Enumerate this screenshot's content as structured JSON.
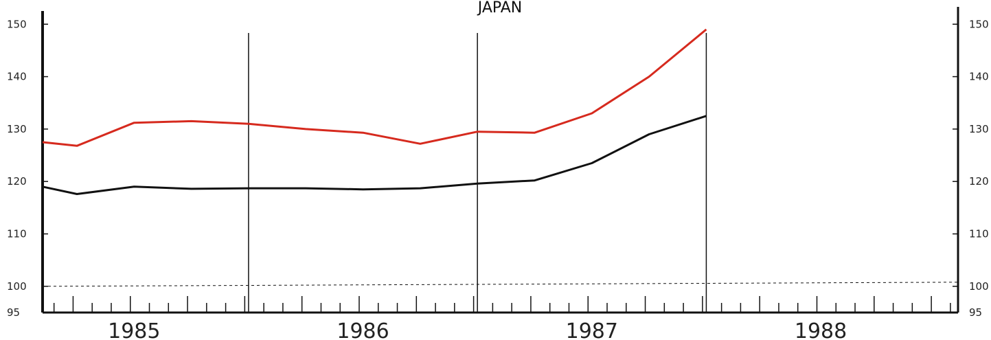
{
  "chart_data": {
    "type": "line",
    "title": "JAPAN",
    "xlabel": "",
    "ylabel": "",
    "x_tick_labels": [
      "1985",
      "1986",
      "1987",
      "1988"
    ],
    "y_ticks": [
      95,
      100,
      110,
      120,
      130,
      140,
      150
    ],
    "ylim": [
      95,
      152
    ],
    "xlim": [
      1984.6,
      1988.6
    ],
    "reference_line": {
      "y": 100,
      "style": "dashed"
    },
    "series": [
      {
        "color": "#d62a1e",
        "x": [
          1984.6,
          1984.75,
          1985.0,
          1985.25,
          1985.5,
          1985.75,
          1986.0,
          1986.25,
          1986.5,
          1986.75,
          1987.0,
          1987.25,
          1987.5
        ],
        "y": [
          127.5,
          126.8,
          131.2,
          131.5,
          131.0,
          130.0,
          129.3,
          127.2,
          129.5,
          129.3,
          133.0,
          140.0,
          149.0
        ],
        "values": [
          127.5,
          126.8,
          131.2,
          131.5,
          131.0,
          130.0,
          129.3,
          127.2,
          129.5,
          129.3,
          133.0,
          140.0,
          149.0
        ]
      },
      {
        "color": "#111111",
        "x": [
          1984.6,
          1984.75,
          1985.0,
          1985.25,
          1985.5,
          1985.75,
          1986.0,
          1986.25,
          1986.5,
          1986.75,
          1987.0,
          1987.25,
          1987.5
        ],
        "y": [
          119.0,
          117.6,
          119.0,
          118.6,
          118.7,
          118.7,
          118.5,
          118.7,
          119.6,
          120.2,
          123.5,
          129.0,
          132.5
        ],
        "values": [
          119.0,
          117.6,
          119.0,
          118.6,
          118.7,
          118.7,
          118.5,
          118.7,
          119.6,
          120.2,
          123.5,
          129.0,
          132.5
        ]
      }
    ]
  }
}
